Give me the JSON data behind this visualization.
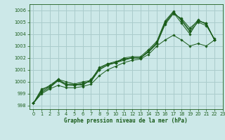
{
  "background_color": "#cce8e8",
  "grid_color": "#aacccc",
  "line_color": "#1a5c1a",
  "xlabel": "Graphe pression niveau de la mer (hPa)",
  "xlim": [
    -0.5,
    23
  ],
  "ylim": [
    997.7,
    1006.5
  ],
  "yticks": [
    998,
    999,
    1000,
    1001,
    1002,
    1003,
    1004,
    1005,
    1006
  ],
  "xticks": [
    0,
    1,
    2,
    3,
    4,
    5,
    6,
    7,
    8,
    9,
    10,
    11,
    12,
    13,
    14,
    15,
    16,
    17,
    18,
    19,
    20,
    21,
    22,
    23
  ],
  "series": [
    [
      998.2,
      999.4,
      999.6,
      1000.1,
      999.8,
      999.7,
      999.8,
      1000.1,
      1001.0,
      1001.4,
      1001.6,
      1001.8,
      1002.0,
      1002.0,
      1002.5,
      1003.2,
      1004.8,
      1005.7,
      1005.3,
      1004.5,
      1005.1,
      1004.9,
      1003.5
    ],
    [
      998.2,
      999.3,
      999.7,
      1000.2,
      1000.0,
      999.8,
      999.7,
      1000.2,
      1001.1,
      1001.5,
      1001.7,
      1001.9,
      1002.0,
      1002.0,
      1002.6,
      1003.3,
      1005.0,
      1005.8,
      1005.2,
      1004.3,
      1005.2,
      1004.8,
      1003.5
    ],
    [
      998.2,
      999.2,
      999.6,
      1000.2,
      999.8,
      999.8,
      1000.0,
      1000.1,
      1001.2,
      1001.5,
      1001.6,
      1002.0,
      1002.1,
      1002.1,
      1002.7,
      1003.4,
      1005.1,
      1005.9,
      1005.1,
      1004.2,
      1005.0,
      1004.7,
      1003.6
    ],
    [
      998.2,
      999.1,
      999.5,
      1000.1,
      999.7,
      999.7,
      999.9,
      1000.0,
      1001.0,
      1001.4,
      1001.6,
      1001.9,
      1002.0,
      1002.0,
      1002.5,
      1003.2,
      1004.9,
      1005.8,
      1004.9,
      1004.0,
      1005.1,
      1004.9,
      1003.5
    ],
    [
      998.2,
      999.0,
      999.4,
      999.7,
      999.5,
      999.5,
      999.6,
      999.8,
      1000.5,
      1001.0,
      1001.3,
      1001.6,
      1001.8,
      1001.9,
      1002.3,
      1003.0,
      1003.5,
      1003.9,
      1003.5,
      1003.0,
      1003.2,
      1003.0,
      1003.5
    ]
  ]
}
